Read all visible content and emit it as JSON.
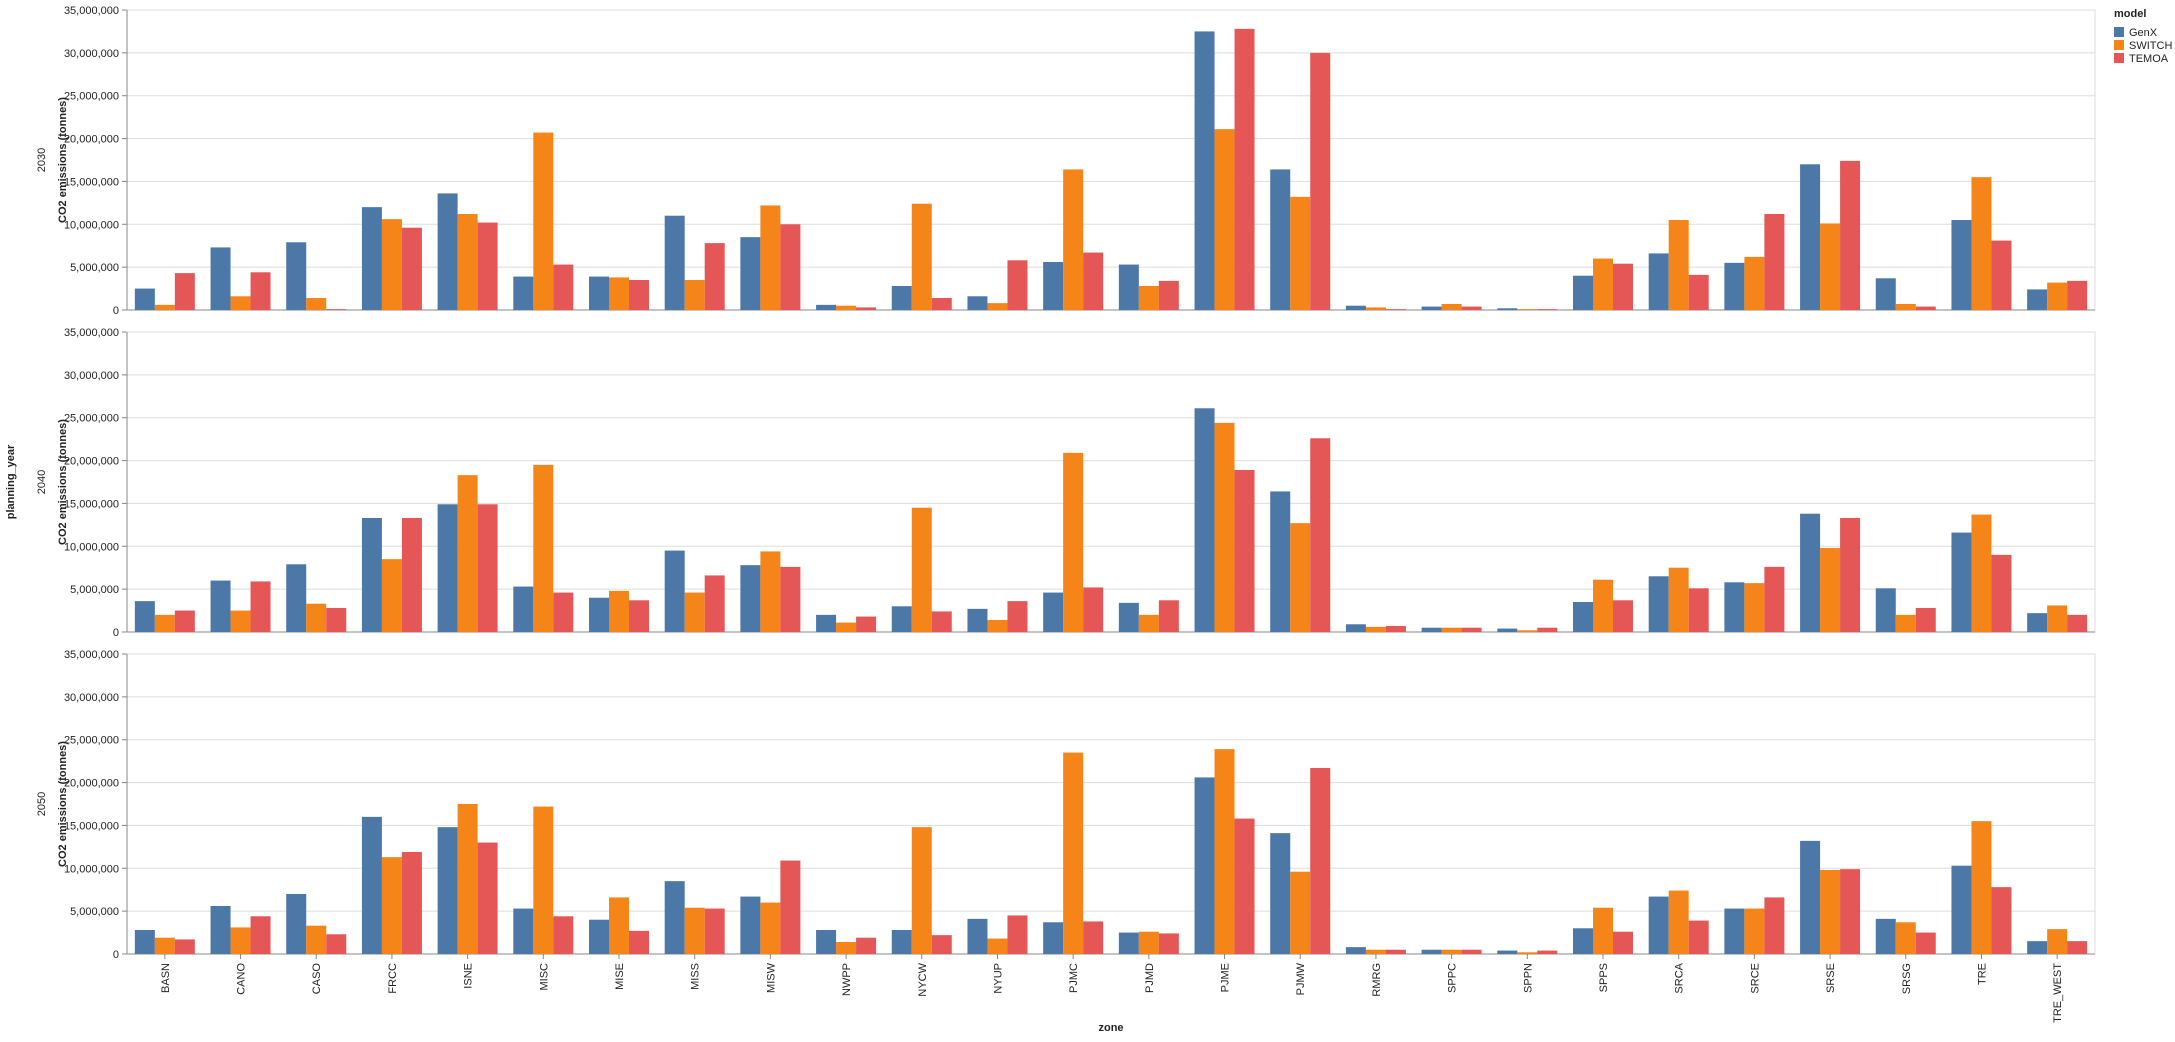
{
  "chart_data": {
    "type": "bar",
    "row_field": "planning_year",
    "x_title": "zone",
    "y_title": "CO2 emissions (tonnes)",
    "y_ticks": [
      "0",
      "5,000,000",
      "10,000,000",
      "15,000,000",
      "20,000,000",
      "25,000,000",
      "30,000,000",
      "35,000,000"
    ],
    "ylim": [
      0,
      35000000
    ],
    "grid": true,
    "legend": {
      "title": "model",
      "position": "top-right"
    },
    "categories": [
      "BASN",
      "CANO",
      "CASO",
      "FRCC",
      "ISNE",
      "MISC",
      "MISE",
      "MISS",
      "MISW",
      "NWPP",
      "NYCW",
      "NYUP",
      "PJMC",
      "PJMD",
      "PJME",
      "PJMW",
      "RMRG",
      "SPPC",
      "SPPN",
      "SPPS",
      "SRCA",
      "SRCE",
      "SRSE",
      "SRSG",
      "TRE",
      "TRE_WEST"
    ],
    "series_colors": {
      "GenX": "#4c78a8",
      "SWITCH": "#f58518",
      "TEMOA": "#e45756"
    },
    "rows": [
      {
        "label": "2030",
        "series": [
          {
            "name": "GenX",
            "values": [
              2500000,
              7300000,
              7900000,
              12000000,
              13600000,
              3900000,
              3900000,
              11000000,
              8500000,
              600000,
              2800000,
              1600000,
              5600000,
              5300000,
              32500000,
              16400000,
              500000,
              400000,
              200000,
              4000000,
              6600000,
              5500000,
              17000000,
              3700000,
              10500000,
              2400000
            ]
          },
          {
            "name": "SWITCH",
            "values": [
              600000,
              1600000,
              1400000,
              10600000,
              11200000,
              20700000,
              3800000,
              3500000,
              12200000,
              500000,
              12400000,
              800000,
              16400000,
              2800000,
              21100000,
              13200000,
              300000,
              700000,
              100000,
              6000000,
              10500000,
              6200000,
              10100000,
              700000,
              15500000,
              3200000
            ]
          },
          {
            "name": "TEMOA",
            "values": [
              4300000,
              4400000,
              100000,
              9600000,
              10200000,
              5300000,
              3500000,
              7800000,
              10000000,
              300000,
              1400000,
              5800000,
              6700000,
              3400000,
              32800000,
              30000000,
              100000,
              400000,
              100000,
              5400000,
              4100000,
              11200000,
              17400000,
              400000,
              8100000,
              3400000
            ]
          }
        ]
      },
      {
        "label": "2040",
        "series": [
          {
            "name": "GenX",
            "values": [
              3600000,
              6000000,
              7900000,
              13300000,
              14900000,
              5300000,
              4000000,
              9500000,
              7800000,
              2000000,
              3000000,
              2700000,
              4600000,
              3400000,
              26100000,
              16400000,
              900000,
              500000,
              400000,
              3500000,
              6500000,
              5800000,
              13800000,
              5100000,
              11600000,
              2200000
            ]
          },
          {
            "name": "SWITCH",
            "values": [
              2000000,
              2500000,
              3300000,
              8500000,
              18300000,
              19500000,
              4800000,
              4600000,
              9400000,
              1100000,
              14500000,
              1400000,
              20900000,
              2000000,
              24400000,
              12700000,
              600000,
              500000,
              200000,
              6100000,
              7500000,
              5700000,
              9800000,
              2000000,
              13700000,
              3100000
            ]
          },
          {
            "name": "TEMOA",
            "values": [
              2500000,
              5900000,
              2800000,
              13300000,
              14900000,
              4600000,
              3700000,
              6600000,
              7600000,
              1800000,
              2400000,
              3600000,
              5200000,
              3700000,
              18900000,
              22600000,
              700000,
              500000,
              500000,
              3700000,
              5100000,
              7600000,
              13300000,
              2800000,
              9000000,
              2000000
            ]
          }
        ]
      },
      {
        "label": "2050",
        "series": [
          {
            "name": "GenX",
            "values": [
              2800000,
              5600000,
              7000000,
              16000000,
              14800000,
              5300000,
              4000000,
              8500000,
              6700000,
              2800000,
              2800000,
              4100000,
              3700000,
              2500000,
              20600000,
              14100000,
              800000,
              500000,
              400000,
              3000000,
              6700000,
              5300000,
              13200000,
              4100000,
              10300000,
              1500000
            ]
          },
          {
            "name": "SWITCH",
            "values": [
              1900000,
              3100000,
              3300000,
              11300000,
              17500000,
              17200000,
              6600000,
              5400000,
              6000000,
              1400000,
              14800000,
              1800000,
              23500000,
              2600000,
              23900000,
              9600000,
              500000,
              500000,
              200000,
              5400000,
              7400000,
              5300000,
              9800000,
              3700000,
              15500000,
              2900000
            ]
          },
          {
            "name": "TEMOA",
            "values": [
              1700000,
              4400000,
              2300000,
              11900000,
              13000000,
              4400000,
              2700000,
              5300000,
              10900000,
              1900000,
              2200000,
              4500000,
              3800000,
              2400000,
              15800000,
              21700000,
              500000,
              500000,
              400000,
              2600000,
              3900000,
              6600000,
              9900000,
              2500000,
              7800000,
              1500000
            ]
          }
        ]
      }
    ]
  }
}
